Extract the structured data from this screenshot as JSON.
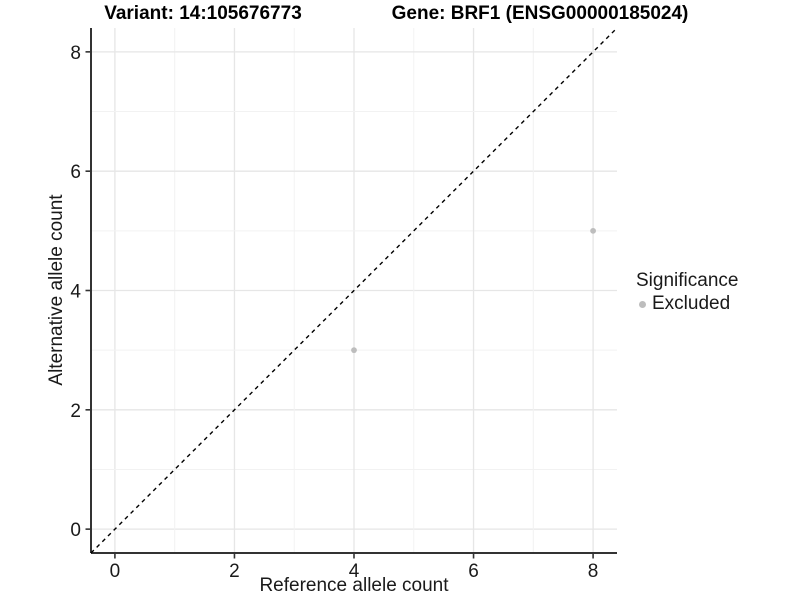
{
  "chart_data": {
    "type": "scatter",
    "title_left": "Variant: 14:105676773",
    "title_right": "Gene: BRF1 (ENSG00000185024)",
    "xlabel": "Reference allele count",
    "ylabel": "Alternative allele count",
    "x_ticks": [
      0,
      2,
      4,
      6,
      8
    ],
    "y_ticks": [
      0,
      2,
      4,
      6,
      8
    ],
    "xlim": [
      -0.4,
      8.4
    ],
    "ylim": [
      -0.4,
      8.4
    ],
    "grid_values": [
      0,
      1,
      2,
      3,
      4,
      5,
      6,
      7,
      8
    ],
    "grid": "on",
    "points": [
      {
        "x": 4,
        "y": 3,
        "significance": "Excluded"
      },
      {
        "x": 8,
        "y": 5,
        "significance": "Excluded"
      }
    ],
    "reference_line": {
      "type": "identity y=x",
      "style": "dashed",
      "color": "#000000"
    },
    "legend": {
      "title": "Significance",
      "position": "right",
      "entries": [
        {
          "label": "Excluded",
          "color": "#bdbdbd"
        }
      ]
    },
    "colors": {
      "point": "#bdbdbd",
      "grid_major": "#e6e6e6",
      "grid_minor": "#f2f2f2",
      "axis_line": "#333333",
      "dashed_line": "#000000",
      "text": "#1a1a1a",
      "background": "#ffffff"
    }
  }
}
